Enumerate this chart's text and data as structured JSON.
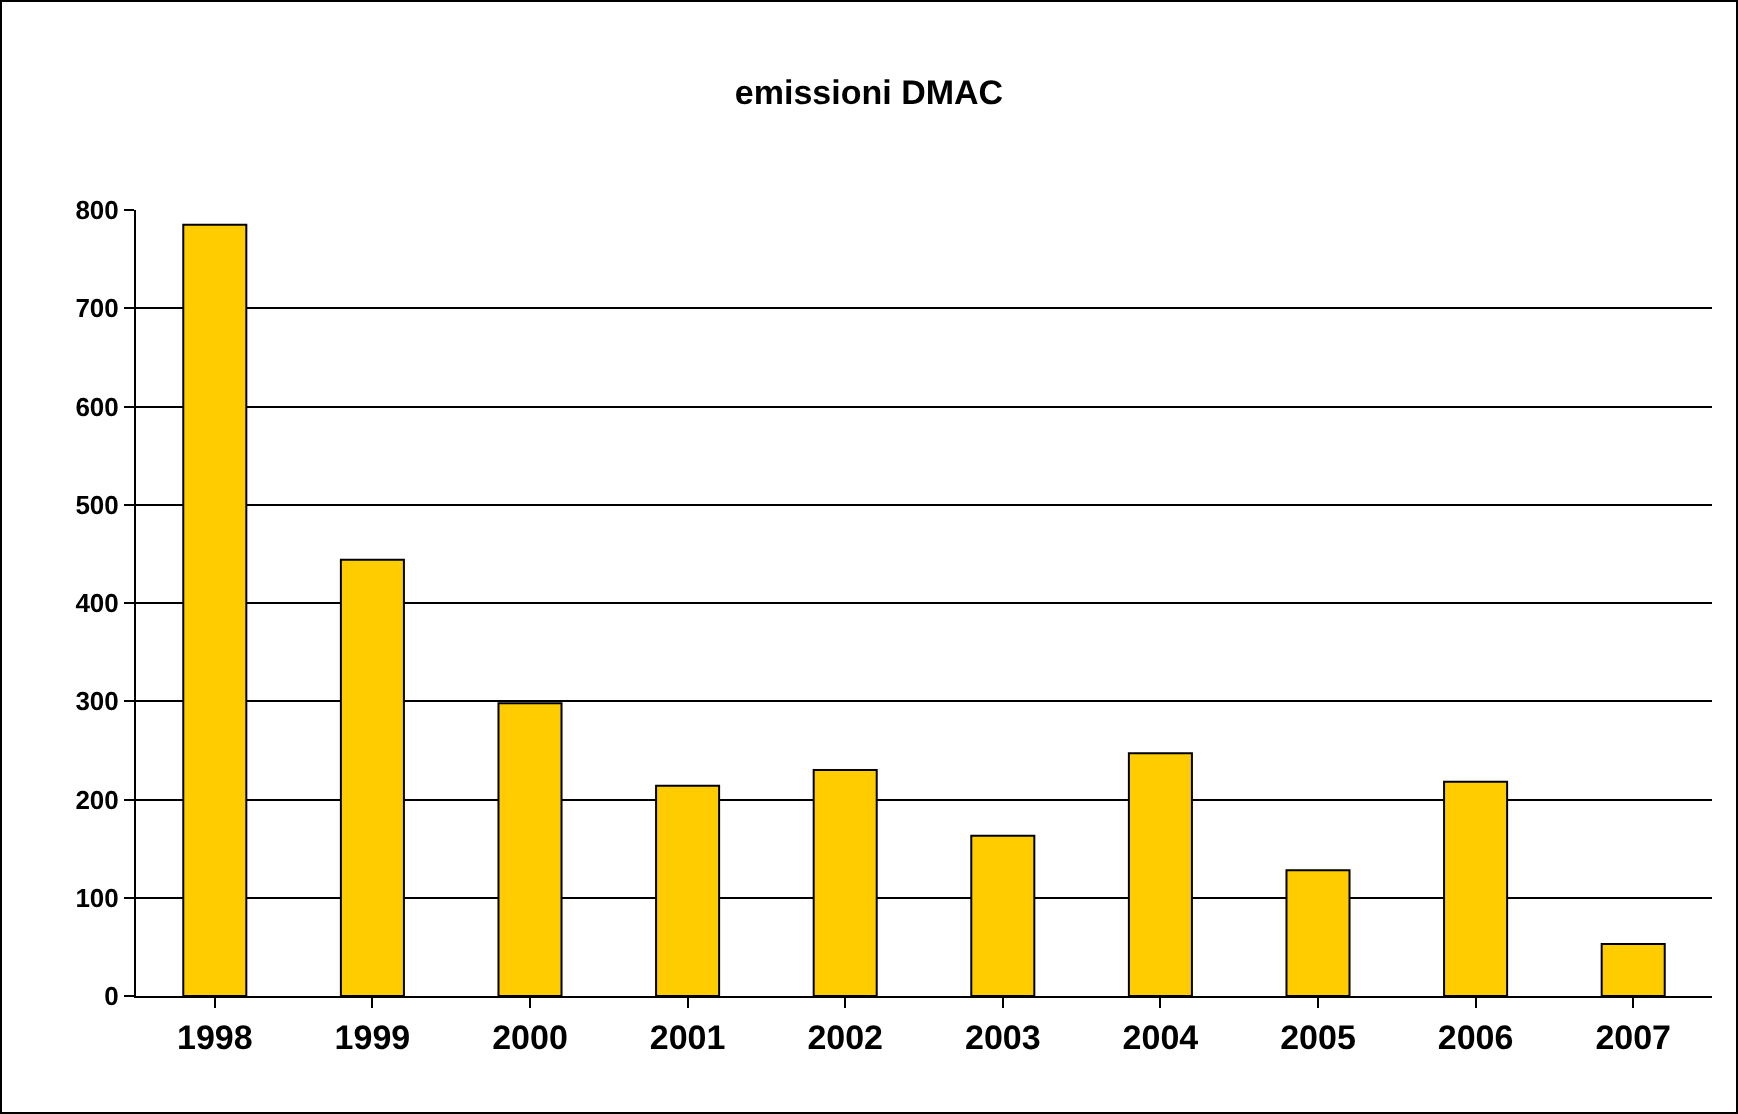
{
  "chart_data": {
    "type": "bar",
    "title": "emissioni DMAC",
    "categories": [
      "1998",
      "1999",
      "2000",
      "2001",
      "2002",
      "2003",
      "2004",
      "2005",
      "2006",
      "2007"
    ],
    "values": [
      785,
      444,
      298,
      214,
      230,
      163,
      247,
      128,
      218,
      53
    ],
    "color": "#ffcc00",
    "ylim": [
      0,
      800
    ],
    "yticks": [
      0,
      100,
      200,
      300,
      400,
      500,
      600,
      700,
      800
    ],
    "grid": "y"
  }
}
